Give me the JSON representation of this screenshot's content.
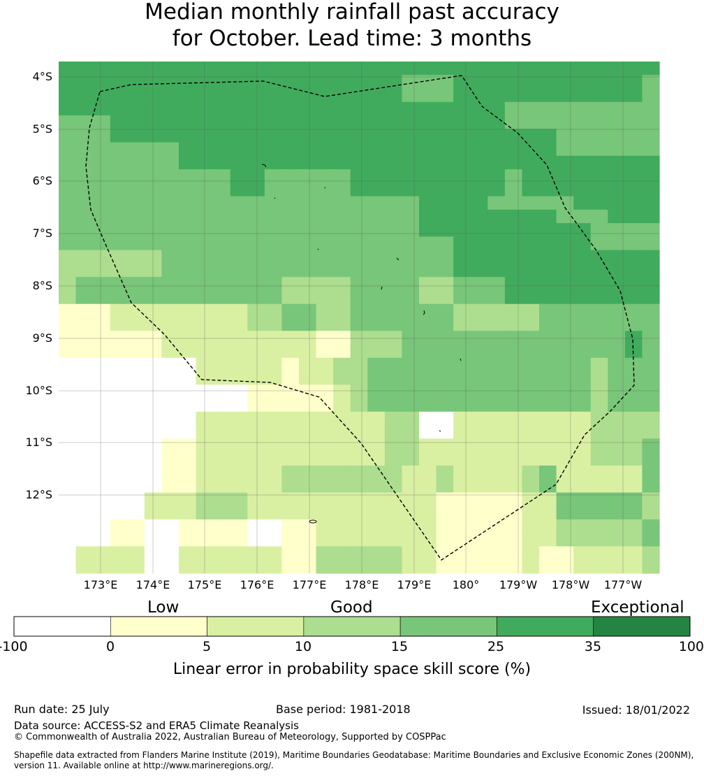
{
  "title": {
    "line1": "Median monthly rainfall past accuracy",
    "line2": "for October. Lead time: 3 months"
  },
  "map": {
    "lat_labels": [
      "4°S",
      "5°S",
      "6°S",
      "7°S",
      "8°S",
      "9°S",
      "10°S",
      "11°S",
      "12°S"
    ],
    "lon_labels": [
      "173°E",
      "174°E",
      "175°E",
      "176°E",
      "177°E",
      "178°E",
      "179°E",
      "180°",
      "179°W",
      "178°W",
      "177°W"
    ],
    "boundary_style": "dashed black line (EEZ)",
    "grid": "on"
  },
  "legend": {
    "categories": [
      "Low",
      "Good",
      "Exceptional"
    ],
    "ticks": [
      "-100",
      "0",
      "5",
      "10",
      "15",
      "25",
      "35",
      "100"
    ],
    "colors": [
      "#ffffff",
      "#ffffcc",
      "#d9f0a3",
      "#addd8e",
      "#78c679",
      "#41ab5d",
      "#238443"
    ],
    "label": "Linear error in probability space skill score (%)"
  },
  "footer": {
    "run_date": "Run date: 25 July",
    "base_period": "Base period: 1981-2018",
    "issued": "Issued: 18/01/2022",
    "data_source": "Data source: ACCESS-S2 and ERA5 Climate Reanalysis",
    "copyright": "© Commonwealth of Australia 2022, Australian Bureau of Meteorology, Supported by COSPPac",
    "shapefile_line1": "Shapefile data extracted from Flanders Marine Institute (2019), Maritime Boundaries Geodatabase: Maritime Boundaries and Exclusive Economic Zones (200NM),",
    "shapefile_line2": "version 11. Available online at http://www.marineregions.org/."
  },
  "skill_grid": {
    "codes": "0 white, 1 light yellow, 2 pale green, 3 light green, 4 medium green, 5 green, 6 dark green",
    "rows": [
      "55555555555555555555555555555555555",
      "55555555555555555555444555555555554",
      "55555555555555555555444555555555554",
      "55555555555555555555555555444444444",
      "44455555555555555555555555444444444",
      "44455555555555555555555555555444444",
      "44444445555555555555555555555444444",
      "44444445555555555555555555555555555",
      "44444444445544444555555555455555555",
      "44444444445544444555555555455555555",
      "44444444444444444444455554444455555",
      "44444444444444444444455555555444555",
      "44444444444444444444455555555554444",
      "44444444444444444444444555555554444",
      "33333344444444444444444555555555555",
      "33333344444444444444444555555555555",
      "34444444444443333444433444555555555",
      "34444444444443333444433444555555555",
      "11122222222334433444444333334444444",
      "11122222222334433444444333334444444",
      "11111122222222211333444444444444454",
      "11111122222222211333444444444444454",
      "00000000222221223344444444444443444",
      "00000000222221223344444444444443444",
      "00000000000111112344444444444443444",
      "00000000000111112344444444444443444",
      "00000000222222222223300222222223333",
      "00000000222222222223300222222223333",
      "00000011222222222223322222222223334",
      "00000011222222222223322222222223334",
      "00000011222223333333223222234222224",
      "00000011222223333333223222234222224",
      "00000222333222222222221111122444443",
      "00000222333222222222221111122444443",
      "00011001111001122222221111122333334",
      "00011001111001122222221111122333334",
      "02222002222221133333221111121122223",
      "02222002222221133333221111121122223"
    ]
  }
}
